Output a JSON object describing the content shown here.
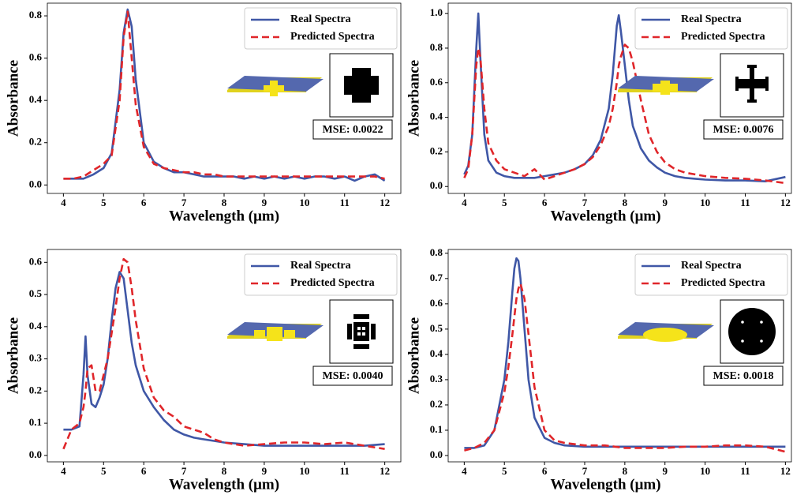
{
  "chart_data": [
    {
      "type": "line",
      "xlabel": "Wavelength (μm)",
      "ylabel": "Absorbance",
      "annotation": "MSE: 0.0022",
      "legend": "upper right",
      "x": [
        4,
        4.25,
        4.5,
        4.75,
        5,
        5.2,
        5.4,
        5.5,
        5.6,
        5.7,
        5.8,
        6,
        6.25,
        6.5,
        6.75,
        7,
        7.25,
        7.5,
        7.75,
        8,
        8.25,
        8.5,
        8.75,
        9,
        9.25,
        9.5,
        9.75,
        10,
        10.25,
        10.5,
        10.75,
        11,
        11.25,
        11.5,
        11.75,
        12
      ],
      "series": [
        {
          "name": "Real Spectra",
          "color": "#3f57a6",
          "dash": false,
          "values": [
            0.03,
            0.03,
            0.03,
            0.05,
            0.08,
            0.15,
            0.45,
            0.72,
            0.83,
            0.75,
            0.5,
            0.2,
            0.11,
            0.08,
            0.06,
            0.06,
            0.05,
            0.04,
            0.04,
            0.04,
            0.04,
            0.03,
            0.04,
            0.03,
            0.04,
            0.03,
            0.04,
            0.03,
            0.04,
            0.04,
            0.03,
            0.04,
            0.02,
            0.04,
            0.05,
            0.02
          ]
        },
        {
          "name": "Predicted Spectra",
          "color": "#e0262a",
          "dash": true,
          "values": [
            0.03,
            0.03,
            0.04,
            0.07,
            0.1,
            0.14,
            0.4,
            0.7,
            0.82,
            0.6,
            0.38,
            0.18,
            0.1,
            0.08,
            0.07,
            0.06,
            0.06,
            0.05,
            0.05,
            0.04,
            0.04,
            0.04,
            0.04,
            0.04,
            0.04,
            0.04,
            0.04,
            0.04,
            0.04,
            0.04,
            0.04,
            0.04,
            0.04,
            0.04,
            0.04,
            0.03
          ]
        }
      ],
      "xlim": [
        3.6,
        12.4
      ],
      "ylim": [
        -0.04,
        0.86
      ],
      "xticks": [
        4,
        5,
        6,
        7,
        8,
        9,
        10,
        11,
        12
      ],
      "yticks": [
        {
          "value": 0,
          "label": "0.0"
        },
        0.2,
        0.4,
        0.6,
        0.8
      ]
    },
    {
      "type": "line",
      "xlabel": "Wavelength (μm)",
      "ylabel": "Absorbance",
      "annotation": "MSE: 0.0076",
      "legend": "upper right",
      "x": [
        4,
        4.1,
        4.2,
        4.3,
        4.35,
        4.4,
        4.5,
        4.6,
        4.8,
        5,
        5.25,
        5.5,
        5.75,
        6,
        6.25,
        6.5,
        6.75,
        7,
        7.2,
        7.4,
        7.6,
        7.7,
        7.8,
        7.85,
        7.9,
        8,
        8.1,
        8.2,
        8.4,
        8.6,
        8.8,
        9,
        9.25,
        9.5,
        9.75,
        10,
        10.5,
        11,
        11.5,
        12
      ],
      "series": [
        {
          "name": "Real Spectra",
          "color": "#3f57a6",
          "dash": false,
          "values": [
            0.07,
            0.12,
            0.3,
            0.8,
            1.0,
            0.75,
            0.3,
            0.15,
            0.08,
            0.06,
            0.05,
            0.05,
            0.05,
            0.06,
            0.07,
            0.08,
            0.1,
            0.13,
            0.18,
            0.27,
            0.45,
            0.65,
            0.93,
            0.99,
            0.9,
            0.7,
            0.5,
            0.35,
            0.22,
            0.15,
            0.11,
            0.08,
            0.06,
            0.05,
            0.045,
            0.04,
            0.035,
            0.035,
            0.03,
            0.055
          ]
        },
        {
          "name": "Predicted Spectra",
          "color": "#e0262a",
          "dash": true,
          "values": [
            0.05,
            0.1,
            0.3,
            0.7,
            0.8,
            0.75,
            0.45,
            0.25,
            0.15,
            0.1,
            0.08,
            0.06,
            0.1,
            0.04,
            0.06,
            0.08,
            0.1,
            0.13,
            0.17,
            0.24,
            0.35,
            0.45,
            0.6,
            0.7,
            0.75,
            0.82,
            0.8,
            0.72,
            0.5,
            0.3,
            0.2,
            0.14,
            0.1,
            0.08,
            0.07,
            0.06,
            0.05,
            0.045,
            0.035,
            0.02
          ]
        }
      ],
      "xlim": [
        3.6,
        12.15
      ],
      "ylim": [
        -0.04,
        1.06
      ],
      "xticks": [
        4,
        5,
        6,
        7,
        8,
        9,
        10,
        11,
        12
      ],
      "yticks": [
        {
          "value": 0,
          "label": "0.0"
        },
        0.2,
        0.4,
        0.6,
        0.8,
        {
          "value": 1,
          "label": "1.0"
        }
      ]
    },
    {
      "type": "line",
      "xlabel": "Wavelength (μm)",
      "ylabel": "Absorbance",
      "annotation": "MSE: 0.0040",
      "legend": "upper right",
      "x": [
        4,
        4.2,
        4.4,
        4.5,
        4.55,
        4.6,
        4.7,
        4.8,
        4.9,
        5,
        5.1,
        5.2,
        5.3,
        5.4,
        5.5,
        5.6,
        5.7,
        5.8,
        6,
        6.25,
        6.5,
        6.75,
        7,
        7.25,
        7.5,
        7.75,
        8,
        8.5,
        9,
        9.5,
        10,
        10.5,
        11,
        11.5,
        12
      ],
      "series": [
        {
          "name": "Real Spectra",
          "color": "#3f57a6",
          "dash": false,
          "values": [
            0.08,
            0.08,
            0.09,
            0.25,
            0.37,
            0.25,
            0.16,
            0.15,
            0.18,
            0.22,
            0.3,
            0.42,
            0.52,
            0.57,
            0.55,
            0.45,
            0.35,
            0.28,
            0.2,
            0.15,
            0.11,
            0.08,
            0.065,
            0.055,
            0.05,
            0.045,
            0.04,
            0.035,
            0.03,
            0.03,
            0.03,
            0.03,
            0.03,
            0.03,
            0.035
          ]
        },
        {
          "name": "Predicted Spectra",
          "color": "#e0262a",
          "dash": true,
          "values": [
            0.02,
            0.08,
            0.1,
            0.15,
            0.2,
            0.27,
            0.28,
            0.2,
            0.2,
            0.25,
            0.3,
            0.38,
            0.46,
            0.55,
            0.61,
            0.6,
            0.52,
            0.42,
            0.27,
            0.18,
            0.14,
            0.12,
            0.09,
            0.08,
            0.07,
            0.05,
            0.04,
            0.03,
            0.035,
            0.04,
            0.04,
            0.035,
            0.04,
            0.03,
            0.02
          ]
        }
      ],
      "xlim": [
        3.6,
        12.4
      ],
      "ylim": [
        -0.02,
        0.64
      ],
      "xticks": [
        4,
        5,
        6,
        7,
        8,
        9,
        10,
        11,
        12
      ],
      "yticks": [
        {
          "value": 0,
          "label": "0.0"
        },
        0.1,
        0.2,
        0.3,
        0.4,
        0.5,
        0.6
      ]
    },
    {
      "type": "line",
      "xlabel": "Wavelength (μm)",
      "ylabel": "Absorbance",
      "annotation": "MSE: 0.0018",
      "legend": "upper right",
      "x": [
        4,
        4.25,
        4.5,
        4.75,
        5,
        5.1,
        5.2,
        5.25,
        5.3,
        5.35,
        5.4,
        5.5,
        5.6,
        5.75,
        6,
        6.25,
        6.5,
        7,
        7.5,
        8,
        8.5,
        9,
        9.5,
        10,
        10.5,
        11,
        11.5,
        12
      ],
      "series": [
        {
          "name": "Real Spectra",
          "color": "#3f57a6",
          "dash": false,
          "values": [
            0.03,
            0.03,
            0.04,
            0.1,
            0.3,
            0.45,
            0.65,
            0.74,
            0.78,
            0.77,
            0.7,
            0.5,
            0.3,
            0.15,
            0.07,
            0.05,
            0.04,
            0.035,
            0.035,
            0.035,
            0.035,
            0.035,
            0.035,
            0.035,
            0.035,
            0.035,
            0.035,
            0.035
          ]
        },
        {
          "name": "Predicted Spectra",
          "color": "#e0262a",
          "dash": true,
          "values": [
            0.02,
            0.03,
            0.05,
            0.1,
            0.25,
            0.35,
            0.48,
            0.55,
            0.62,
            0.66,
            0.68,
            0.62,
            0.48,
            0.27,
            0.1,
            0.06,
            0.05,
            0.04,
            0.04,
            0.03,
            0.03,
            0.03,
            0.035,
            0.035,
            0.04,
            0.04,
            0.035,
            0.015
          ]
        }
      ],
      "xlim": [
        3.6,
        12.15
      ],
      "ylim": [
        -0.025,
        0.815
      ],
      "xticks": [
        4,
        5,
        6,
        7,
        8,
        9,
        10,
        11,
        12
      ],
      "yticks": [
        {
          "value": 0,
          "label": "0.0"
        },
        0.1,
        0.2,
        0.3,
        0.4,
        0.5,
        0.6,
        0.7,
        0.8
      ]
    }
  ]
}
